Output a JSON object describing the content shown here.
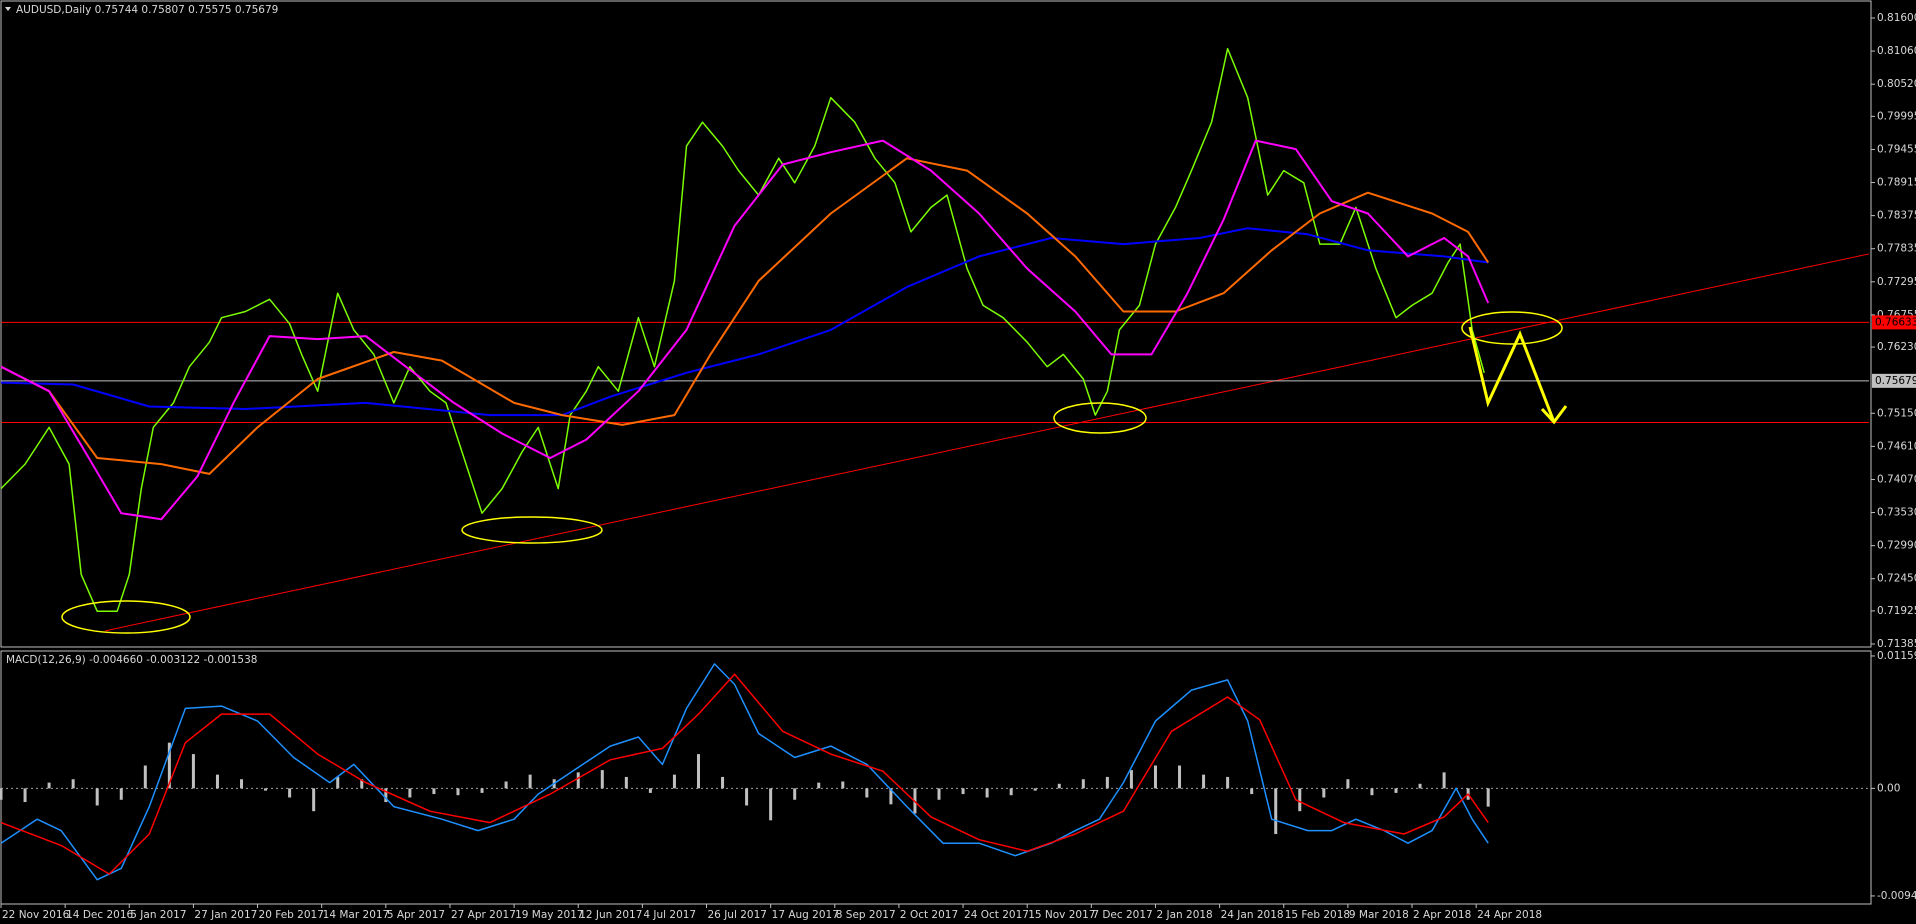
{
  "chart_data": [
    {
      "type": "line",
      "title": "AUDUSD,Daily  0.75744 0.75807 0.75575 0.75679",
      "xlim": [
        0,
        466
      ],
      "ylim": [
        0.71385,
        0.816
      ],
      "yticks": [
        {
          "value": 0.816,
          "label": "0.81600"
        },
        {
          "value": 0.8106,
          "label": "0.81060"
        },
        {
          "value": 0.8052,
          "label": "0.80520"
        },
        0.79995,
        0.79455,
        0.78915,
        0.78375,
        0.77835,
        0.77295,
        0.76755,
        {
          "value": 0.7623,
          "label": "0.76230"
        },
        {
          "value": 0.7515,
          "label": "0.75150"
        },
        {
          "value": 0.7461,
          "label": "0.74610"
        },
        {
          "value": 0.7407,
          "label": "0.74070"
        },
        {
          "value": 0.7353,
          "label": "0.73530"
        },
        {
          "value": 0.7299,
          "label": "0.72990"
        },
        {
          "value": 0.7245,
          "label": "0.72450"
        },
        0.71925,
        0.71385
      ],
      "series": [
        {
          "color": "#7cfc00",
          "width": 1.5,
          "x": [
            0,
            6,
            12,
            17,
            20,
            24,
            29,
            32,
            35,
            38,
            43,
            47,
            52,
            55,
            61,
            67,
            72,
            75,
            79,
            84,
            88,
            93,
            98,
            102,
            107,
            111,
            116,
            120,
            125,
            130,
            134,
            139,
            142,
            146,
            149,
            154,
            159,
            163,
            168,
            171,
            175,
            180,
            184,
            189,
            194,
            198,
            203,
            207,
            213,
            218,
            223,
            227,
            232,
            236,
            241,
            245,
            250,
            256,
            261,
            265,
            270,
            273,
            276,
            279,
            284,
            288,
            293,
            297,
            302,
            306,
            311,
            316,
            320,
            325,
            329,
            334,
            338,
            343,
            348,
            352,
            357,
            361,
            364,
            367,
            370
          ],
          "values": [
            0.7392,
            0.7432,
            0.7492,
            0.7432,
            0.7252,
            0.7192,
            0.7192,
            0.7252,
            0.7392,
            0.7492,
            0.7532,
            0.7591,
            0.7631,
            0.7671,
            0.7681,
            0.7701,
            0.7661,
            0.7611,
            0.7551,
            0.7711,
            0.7651,
            0.7611,
            0.7532,
            0.7591,
            0.7551,
            0.7532,
            0.7432,
            0.7352,
            0.7392,
            0.7452,
            0.7492,
            0.7392,
            0.7512,
            0.7551,
            0.7591,
            0.7551,
            0.7671,
            0.7591,
            0.7731,
            0.7951,
            0.799,
            0.7951,
            0.7911,
            0.7871,
            0.7931,
            0.7891,
            0.7951,
            0.803,
            0.799,
            0.7931,
            0.7891,
            0.7811,
            0.7851,
            0.7871,
            0.7751,
            0.7691,
            0.7671,
            0.7631,
            0.7591,
            0.7611,
            0.7571,
            0.7512,
            0.7551,
            0.7651,
            0.7691,
            0.7791,
            0.7851,
            0.7911,
            0.799,
            0.811,
            0.803,
            0.7871,
            0.7911,
            0.7891,
            0.7791,
            0.7791,
            0.7851,
            0.7751,
            0.7671,
            0.7691,
            0.7711,
            0.7761,
            0.7791,
            0.7651,
            0.7581
          ]
        },
        {
          "color": "#0000ff",
          "width": 2,
          "x": [
            0,
            18,
            37,
            61,
            91,
            122,
            140,
            152,
            171,
            189,
            207,
            226,
            244,
            262,
            280,
            299,
            311,
            326,
            341,
            360,
            371
          ],
          "values": [
            0.7565,
            0.7562,
            0.7526,
            0.7522,
            0.7532,
            0.7512,
            0.7512,
            0.7542,
            0.7581,
            0.7611,
            0.7651,
            0.7721,
            0.7771,
            0.7801,
            0.7791,
            0.7801,
            0.7817,
            0.7807,
            0.7781,
            0.7771,
            0.7761
          ]
        },
        {
          "color": "#ff6a00",
          "width": 2,
          "x": [
            0,
            12,
            24,
            40,
            52,
            64,
            79,
            98,
            110,
            128,
            140,
            155,
            168,
            177,
            189,
            207,
            226,
            241,
            256,
            268,
            280,
            293,
            305,
            317,
            329,
            341,
            357,
            366,
            371
          ],
          "values": [
            0.7591,
            0.7551,
            0.7442,
            0.7432,
            0.7416,
            0.7492,
            0.7571,
            0.7615,
            0.7601,
            0.7532,
            0.7512,
            0.7496,
            0.7512,
            0.7611,
            0.7731,
            0.7841,
            0.7931,
            0.7911,
            0.7841,
            0.7771,
            0.7681,
            0.7681,
            0.7711,
            0.7781,
            0.7841,
            0.7875,
            0.7841,
            0.7811,
            0.7761
          ]
        },
        {
          "color": "#ff00ff",
          "width": 2,
          "x": [
            0,
            12,
            21,
            30,
            40,
            49,
            58,
            67,
            79,
            91,
            101,
            113,
            125,
            137,
            146,
            159,
            171,
            183,
            195,
            207,
            220,
            232,
            244,
            256,
            268,
            277,
            287,
            296,
            305,
            313,
            323,
            332,
            341,
            351,
            360,
            366,
            371
          ],
          "values": [
            0.7591,
            0.7551,
            0.7452,
            0.7352,
            0.7342,
            0.7412,
            0.7532,
            0.7641,
            0.7636,
            0.7641,
            0.7591,
            0.7532,
            0.7482,
            0.7442,
            0.7472,
            0.7551,
            0.7651,
            0.7821,
            0.7921,
            0.7941,
            0.796,
            0.7911,
            0.7841,
            0.7751,
            0.7681,
            0.7611,
            0.7611,
            0.7711,
            0.7831,
            0.796,
            0.7946,
            0.7861,
            0.7841,
            0.7771,
            0.7801,
            0.7771,
            0.7695
          ]
        }
      ],
      "hlines": [
        {
          "value": 0.76633,
          "color": "#ff0000",
          "label": "0.76633"
        },
        {
          "value": 0.75679,
          "color": "#c0c0c0",
          "label": "0.75679"
        },
        {
          "value": 0.75,
          "color": "#ff0000"
        }
      ],
      "trendline": {
        "x": [
          26,
          466
        ],
        "values": [
          0.716,
          0.7775
        ],
        "color": "#ff0000"
      }
    },
    {
      "type": "line",
      "title": "MACD(12,26,9) -0.004660 -0.003122 -0.001538",
      "xlim": [
        0,
        466
      ],
      "ylim": [
        -0.01004,
        0.01194
      ],
      "yticks": [
        0.011592,
        {
          "value": 0,
          "label": "0.00"
        },
        -0.009421
      ],
      "zero_line": true,
      "xticks": [
        {
          "value": 0,
          "label": "22 Nov 2016"
        },
        {
          "value": 16,
          "label": "14 Dec 2016"
        },
        {
          "value": 32,
          "label": "5 Jan 2017"
        },
        {
          "value": 48,
          "label": "27 Jan 2017"
        },
        {
          "value": 64,
          "label": "20 Feb 2017"
        },
        {
          "value": 80,
          "label": "14 Mar 2017"
        },
        {
          "value": 96,
          "label": "5 Apr 2017"
        },
        {
          "value": 112,
          "label": "27 Apr 2017"
        },
        {
          "value": 128,
          "label": "19 May 2017"
        },
        {
          "value": 144,
          "label": "12 Jun 2017"
        },
        {
          "value": 160,
          "label": "4 Jul 2017"
        },
        {
          "value": 176,
          "label": "26 Jul 2017"
        },
        {
          "value": 192,
          "label": "17 Aug 2017"
        },
        {
          "value": 208,
          "label": "8 Sep 2017"
        },
        {
          "value": 224,
          "label": "2 Oct 2017"
        },
        {
          "value": 240,
          "label": "24 Oct 2017"
        },
        {
          "value": 256,
          "label": "15 Nov 2017"
        },
        {
          "value": 272,
          "label": "7 Dec 2017"
        },
        {
          "value": 288,
          "label": "2 Jan 2018"
        },
        {
          "value": 304,
          "label": "24 Jan 2018"
        },
        {
          "value": 320,
          "label": "15 Feb 2018"
        },
        {
          "value": 336,
          "label": "9 Mar 2018"
        },
        {
          "value": 352,
          "label": "2 Apr 2018"
        },
        {
          "value": 368,
          "label": "24 Apr 2018"
        }
      ],
      "series": [
        {
          "style": "bar",
          "color": "#c0c0c0",
          "x": [
            0,
            6,
            12,
            18,
            24,
            30,
            36,
            42,
            48,
            54,
            60,
            66,
            72,
            78,
            84,
            90,
            96,
            102,
            108,
            114,
            120,
            126,
            132,
            138,
            144,
            150,
            156,
            162,
            168,
            174,
            180,
            186,
            192,
            198,
            204,
            210,
            216,
            222,
            228,
            234,
            240,
            246,
            252,
            258,
            264,
            270,
            276,
            282,
            288,
            294,
            300,
            306,
            312,
            318,
            324,
            330,
            336,
            342,
            348,
            354,
            360,
            366,
            371
          ],
          "values": [
            -0.001,
            -0.0012,
            0.0005,
            0.0008,
            -0.0015,
            -0.001,
            0.002,
            0.004,
            0.003,
            0.0012,
            0.0008,
            -0.0002,
            -0.0008,
            -0.002,
            0.001,
            0.0008,
            -0.0012,
            -0.0008,
            -0.0005,
            -0.0006,
            -0.0004,
            0.0006,
            0.0012,
            0.0008,
            0.0014,
            0.0016,
            0.001,
            -0.0004,
            0.0012,
            0.003,
            0.001,
            -0.0015,
            -0.0028,
            -0.001,
            0.0005,
            0.0006,
            -0.0008,
            -0.0014,
            -0.0022,
            -0.001,
            -0.0005,
            -0.0008,
            -0.0006,
            -0.0002,
            0.0004,
            0.0008,
            0.001,
            0.0016,
            0.002,
            0.002,
            0.0012,
            0.001,
            -0.0005,
            -0.004,
            -0.002,
            -0.0008,
            0.0008,
            -0.0006,
            -0.0004,
            0.0004,
            0.0014,
            -0.001,
            -0.0016
          ]
        },
        {
          "style": "line",
          "color": "#1e90ff",
          "x": [
            0,
            9,
            15,
            24,
            30,
            37,
            46,
            55,
            64,
            73,
            82,
            88,
            98,
            110,
            119,
            128,
            134,
            143,
            152,
            159,
            165,
            171,
            178,
            183,
            189,
            198,
            207,
            216,
            226,
            235,
            244,
            253,
            262,
            268,
            274,
            280,
            288,
            297,
            306,
            311,
            317,
            326,
            332,
            338,
            345,
            351,
            357,
            363,
            367,
            371
          ],
          "values": [
            -0.0048,
            -0.0027,
            -0.0037,
            -0.008,
            -0.007,
            -0.0016,
            0.007,
            0.0072,
            0.0059,
            0.0027,
            0.0005,
            0.0021,
            -0.0016,
            -0.0027,
            -0.0037,
            -0.0027,
            -0.0005,
            0.0016,
            0.0037,
            0.0045,
            0.0021,
            0.007,
            0.0109,
            0.0091,
            0.0048,
            0.0027,
            0.0037,
            0.0021,
            -0.0016,
            -0.0048,
            -0.0048,
            -0.0059,
            -0.0048,
            -0.0037,
            -0.0027,
            0.0005,
            0.0059,
            0.0086,
            0.0095,
            0.0059,
            -0.0027,
            -0.0037,
            -0.0037,
            -0.0027,
            -0.0037,
            -0.0048,
            -0.0037,
            0,
            -0.0027,
            -0.0048
          ]
        },
        {
          "style": "line",
          "color": "#ff0000",
          "x": [
            0,
            15,
            27,
            37,
            46,
            55,
            67,
            79,
            91,
            107,
            122,
            137,
            152,
            165,
            174,
            183,
            195,
            207,
            220,
            232,
            244,
            256,
            268,
            280,
            292,
            306,
            314,
            323,
            335,
            350,
            360,
            366,
            371
          ],
          "values": [
            -0.003,
            -0.005,
            -0.0075,
            -0.004,
            0.004,
            0.0065,
            0.0065,
            0.003,
            0.0005,
            -0.002,
            -0.003,
            -0.0005,
            0.0025,
            0.0035,
            0.0065,
            0.01,
            0.005,
            0.003,
            0.0015,
            -0.0025,
            -0.0045,
            -0.0055,
            -0.004,
            -0.002,
            0.005,
            0.008,
            0.006,
            -0.001,
            -0.003,
            -0.004,
            -0.0025,
            -0.0005,
            -0.003
          ]
        }
      ]
    }
  ]
}
